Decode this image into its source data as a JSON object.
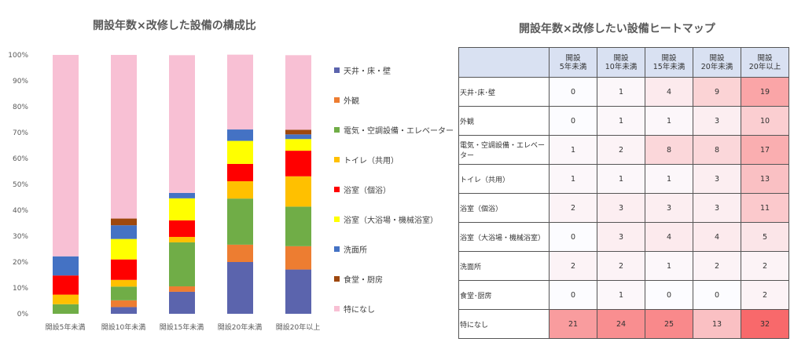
{
  "chart_data": {
    "type": "bar",
    "stacked": true,
    "title": "開設年数×改修した設備の構成比",
    "categories": [
      "開設5年未満",
      "開設10年未満",
      "開設15年未満",
      "開設20年未満",
      "開設20年以上"
    ],
    "ylim": [
      0,
      100
    ],
    "yticks": [
      "0%",
      "10%",
      "20%",
      "30%",
      "40%",
      "50%",
      "60%",
      "70%",
      "80%",
      "90%",
      "100%"
    ],
    "legend_position": "right",
    "grid": false,
    "series": [
      {
        "name": "天井・床・壁",
        "color": "#5b64ad",
        "values": [
          0,
          2.6,
          8.5,
          20.0,
          17.1
        ]
      },
      {
        "name": "外観",
        "color": "#ed7d31",
        "values": [
          0,
          2.6,
          2.1,
          6.7,
          9.0
        ]
      },
      {
        "name": "電気・空調設備・エレベーター",
        "color": "#70ad47",
        "values": [
          3.7,
          5.3,
          17.0,
          17.8,
          15.3
        ]
      },
      {
        "name": "トイレ（共用）",
        "color": "#ffc000",
        "values": [
          3.7,
          2.6,
          2.1,
          6.7,
          11.7
        ]
      },
      {
        "name": "浴室（個浴）",
        "color": "#ff0000",
        "values": [
          7.4,
          7.9,
          6.4,
          6.7,
          9.9
        ]
      },
      {
        "name": "浴室（大浴場・機械浴室）",
        "color": "#ffff00",
        "values": [
          0,
          7.9,
          8.5,
          8.9,
          4.5
        ]
      },
      {
        "name": "洗面所",
        "color": "#4472c4",
        "values": [
          7.4,
          5.3,
          2.1,
          4.4,
          1.8
        ]
      },
      {
        "name": "食堂・厨房",
        "color": "#9e480e",
        "values": [
          0,
          2.6,
          0,
          0,
          1.8
        ]
      },
      {
        "name": "特になし",
        "color": "#f8c0d4",
        "values": [
          77.8,
          63.2,
          53.2,
          28.9,
          28.8
        ]
      }
    ]
  },
  "heatmap": {
    "title": "開設年数×改修したい設備ヒートマップ",
    "columns": [
      [
        "開設",
        "5年未満"
      ],
      [
        "開設",
        "10年未満"
      ],
      [
        "開設",
        "15年未満"
      ],
      [
        "開設",
        "20年未満"
      ],
      [
        "開設",
        "20年以上"
      ]
    ],
    "rows": [
      {
        "label": "天井･床･壁",
        "values": [
          0,
          1,
          4,
          9,
          19
        ]
      },
      {
        "label": "外観",
        "values": [
          0,
          1,
          1,
          3,
          10
        ]
      },
      {
        "label": "電気・空調設備・エレベーター",
        "values": [
          1,
          2,
          8,
          8,
          17
        ]
      },
      {
        "label": "トイレ（共用）",
        "values": [
          1,
          1,
          1,
          3,
          13
        ]
      },
      {
        "label": "浴室（個浴）",
        "values": [
          2,
          3,
          3,
          3,
          11
        ]
      },
      {
        "label": "浴室（大浴場・機械浴室）",
        "values": [
          0,
          3,
          4,
          4,
          5
        ]
      },
      {
        "label": "洗面所",
        "values": [
          2,
          2,
          1,
          2,
          2
        ]
      },
      {
        "label": "食堂･厨房",
        "values": [
          0,
          1,
          0,
          0,
          2
        ]
      },
      {
        "label": "特になし",
        "values": [
          21,
          24,
          25,
          13,
          32
        ]
      }
    ],
    "color_min": "#fcfcff",
    "color_max": "#f8696b"
  }
}
